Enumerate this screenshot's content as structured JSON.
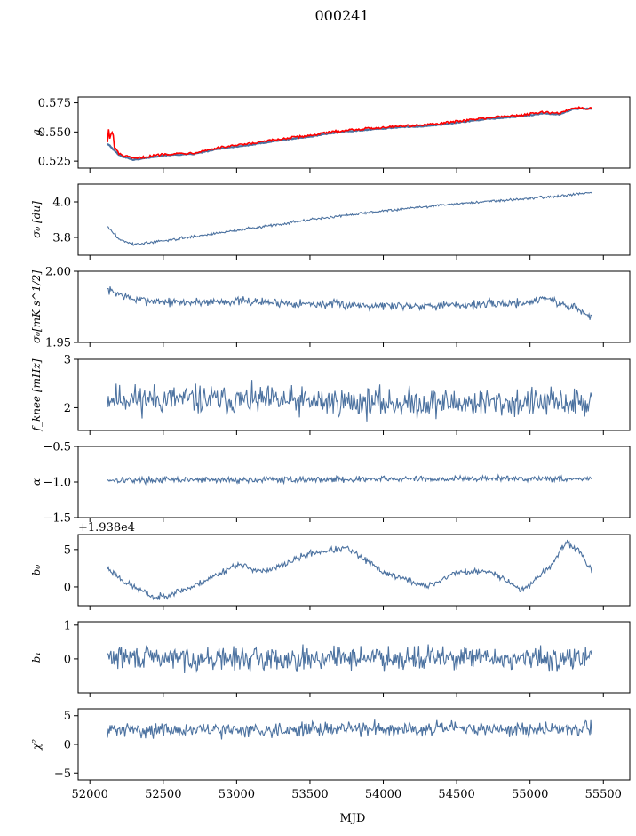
{
  "figure": {
    "title": "000241",
    "xlabel": "MJD",
    "offset_text": "+1.938e4",
    "x_ticks": [
      52000,
      52500,
      53000,
      53500,
      54000,
      54500,
      55000,
      55500
    ],
    "xlim": [
      51920,
      55680
    ]
  },
  "colors": {
    "series": "#4c72a0",
    "highlight": "#ff0000",
    "axis": "#000000"
  },
  "chart_data": [
    {
      "type": "line",
      "id": "g",
      "ylabel": "g",
      "ylim": [
        0.519,
        0.58
      ],
      "y_ticks": [
        0.525,
        0.55,
        0.575
      ],
      "y_tick_labels": [
        "0.525",
        "0.550",
        "0.575"
      ],
      "x_range": [
        52120,
        55420
      ],
      "series_count": 2,
      "series": [
        {
          "color": "#4c72a0",
          "x": [
            52120,
            52200,
            52300,
            52400,
            52500,
            52700,
            52900,
            53100,
            53300,
            53500,
            53700,
            53900,
            54100,
            54300,
            54500,
            54700,
            54900,
            55100,
            55200,
            55300,
            55420
          ],
          "y": [
            0.54,
            0.53,
            0.526,
            0.528,
            0.53,
            0.531,
            0.536,
            0.539,
            0.543,
            0.546,
            0.55,
            0.552,
            0.554,
            0.555,
            0.558,
            0.561,
            0.563,
            0.566,
            0.565,
            0.57,
            0.57
          ]
        },
        {
          "color": "#ff0000",
          "x": [
            52120,
            52200,
            52300,
            52400,
            52500,
            52700,
            52900,
            53100,
            53300,
            53500,
            53700,
            53900,
            54100,
            54300,
            54500,
            54700,
            54900,
            55100,
            55200,
            55300,
            55420
          ],
          "y": [
            0.546,
            0.531,
            0.527,
            0.529,
            0.531,
            0.532,
            0.537,
            0.54,
            0.544,
            0.547,
            0.551,
            0.553,
            0.555,
            0.556,
            0.559,
            0.562,
            0.564,
            0.567,
            0.566,
            0.571,
            0.57
          ]
        }
      ]
    },
    {
      "type": "line",
      "id": "sigma0_du",
      "ylabel": "σ₀ [du]",
      "ylim": [
        3.7,
        4.1
      ],
      "y_ticks": [
        3.8,
        4.0
      ],
      "y_tick_labels": [
        "3.8",
        "4.0"
      ],
      "x_range": [
        52120,
        55420
      ],
      "anchors_x": [
        52120,
        52200,
        52300,
        52500,
        53000,
        53500,
        54000,
        54500,
        55000,
        55420
      ],
      "anchors_y": [
        3.86,
        3.79,
        3.76,
        3.78,
        3.84,
        3.9,
        3.95,
        3.99,
        4.02,
        4.05
      ],
      "noise": 0.006,
      "seed": 3
    },
    {
      "type": "line",
      "id": "sigma0_mks",
      "ylabel": "σ₀[mK s^1/2]",
      "ylim": [
        1.95,
        2.0
      ],
      "y_ticks": [
        1.95,
        2.0
      ],
      "y_tick_labels": [
        "1.95",
        "2.00"
      ],
      "x_range": [
        52120,
        55420
      ],
      "anchors_x": [
        52120,
        52300,
        52600,
        53000,
        53500,
        54000,
        54500,
        55000,
        55100,
        55200,
        55300,
        55420
      ],
      "anchors_y": [
        1.987,
        1.98,
        1.978,
        1.979,
        1.977,
        1.976,
        1.976,
        1.978,
        1.982,
        1.977,
        1.975,
        1.967
      ],
      "noise": 0.0025,
      "seed": 7
    },
    {
      "type": "line",
      "id": "fknee",
      "ylabel": "f_knee [mHz]",
      "ylim": [
        1.53,
        3.0
      ],
      "y_ticks": [
        2,
        3
      ],
      "y_tick_labels": [
        "2",
        "3"
      ],
      "x_range": [
        52120,
        55420
      ],
      "anchors_x": [
        52120,
        53000,
        54000,
        55000,
        55420
      ],
      "anchors_y": [
        2.2,
        2.15,
        2.1,
        2.1,
        2.1
      ],
      "noise": 0.25,
      "seed": 11
    },
    {
      "type": "line",
      "id": "alpha",
      "ylabel": "α",
      "ylim": [
        -1.5,
        -0.5
      ],
      "y_ticks": [
        -1.5,
        -1.0,
        -0.5
      ],
      "y_tick_labels": [
        "−1.5",
        "−1.0",
        "−0.5"
      ],
      "x_range": [
        52120,
        55420
      ],
      "anchors_x": [
        52120,
        53000,
        54000,
        55000,
        55420
      ],
      "anchors_y": [
        -0.97,
        -0.97,
        -0.96,
        -0.95,
        -0.96
      ],
      "noise": 0.035,
      "seed": 17
    },
    {
      "type": "line",
      "id": "b0",
      "ylabel": "b₀",
      "ylim": [
        -2.5,
        7
      ],
      "y_ticks": [
        0,
        5
      ],
      "y_tick_labels": [
        "0",
        "5"
      ],
      "x_range": [
        52120,
        55420
      ],
      "anchors_x": [
        52120,
        52250,
        52450,
        52700,
        53000,
        53200,
        53500,
        53750,
        54000,
        54300,
        54500,
        54750,
        54950,
        55150,
        55250,
        55350,
        55420
      ],
      "anchors_y": [
        2.5,
        0.5,
        -1.5,
        0,
        3,
        2,
        4.5,
        5.2,
        2,
        0,
        2,
        2,
        -0.5,
        3,
        6,
        4.5,
        2
      ],
      "noise": 0.35,
      "seed": 23
    },
    {
      "type": "line",
      "id": "b1",
      "ylabel": "b₁",
      "ylim": [
        -1.0,
        1.1
      ],
      "y_ticks": [
        0,
        1
      ],
      "y_tick_labels": [
        "0",
        "1"
      ],
      "x_range": [
        52120,
        55420
      ],
      "anchors_x": [
        52120,
        53000,
        54000,
        55000,
        55420
      ],
      "anchors_y": [
        0.05,
        0.0,
        0.05,
        0.0,
        0.02
      ],
      "noise": 0.28,
      "seed": 29
    },
    {
      "type": "line",
      "id": "chi2",
      "ylabel": "χ²",
      "ylim": [
        -6.2,
        6.2
      ],
      "y_ticks": [
        -5,
        0,
        5
      ],
      "y_tick_labels": [
        "−5",
        "0",
        "5"
      ],
      "x_range": [
        52120,
        55420
      ],
      "anchors_x": [
        52120,
        53000,
        54000,
        55000,
        55420
      ],
      "anchors_y": [
        2.5,
        2.5,
        2.8,
        2.6,
        2.8
      ],
      "noise": 1.0,
      "seed": 31
    }
  ]
}
